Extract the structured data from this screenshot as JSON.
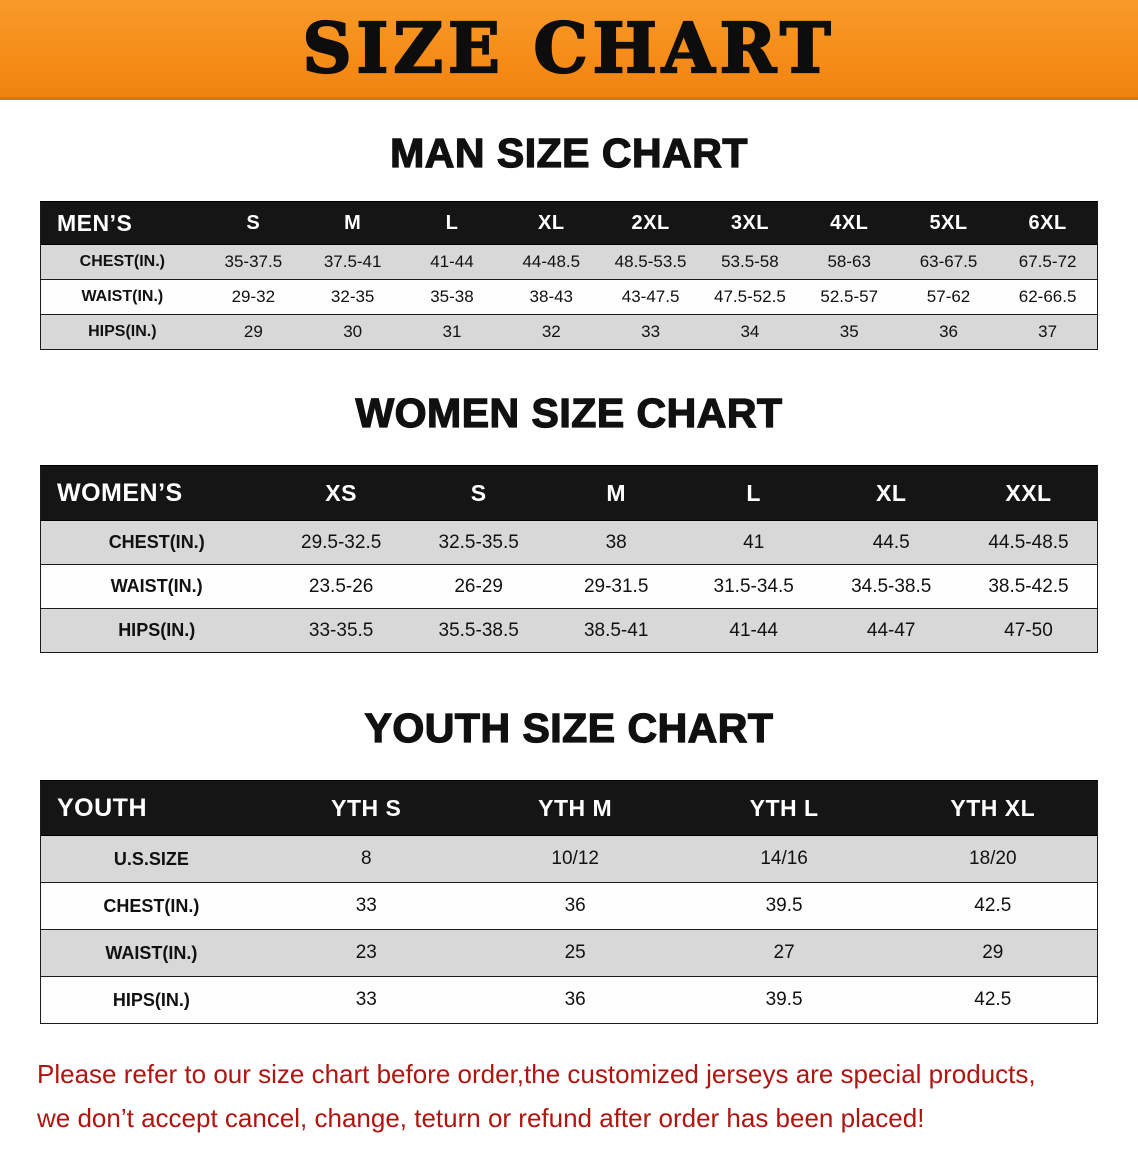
{
  "banner": {
    "title": "SIZE CHART"
  },
  "sections": [
    {
      "heading": "MAN SIZE CHART",
      "table": {
        "header": [
          "MEN’S",
          "S",
          "M",
          "L",
          "XL",
          "2XL",
          "3XL",
          "4XL",
          "5XL",
          "6XL"
        ],
        "rows": [
          [
            "CHEST(IN.)",
            "35-37.5",
            "37.5-41",
            "41-44",
            "44-48.5",
            "48.5-53.5",
            "53.5-58",
            "58-63",
            "63-67.5",
            "67.5-72"
          ],
          [
            "WAIST(IN.)",
            "29-32",
            "32-35",
            "35-38",
            "38-43",
            "43-47.5",
            "47.5-52.5",
            "52.5-57",
            "57-62",
            "62-66.5"
          ],
          [
            "HIPS(IN.)",
            "29",
            "30",
            "31",
            "32",
            "33",
            "34",
            "35",
            "36",
            "37"
          ]
        ]
      }
    },
    {
      "heading": "WOMEN SIZE CHART",
      "table": {
        "header": [
          "WOMEN’S",
          "XS",
          "S",
          "M",
          "L",
          "XL",
          "XXL"
        ],
        "rows": [
          [
            "CHEST(IN.)",
            "29.5-32.5",
            "32.5-35.5",
            "38",
            "41",
            "44.5",
            "44.5-48.5"
          ],
          [
            "WAIST(IN.)",
            "23.5-26",
            "26-29",
            "29-31.5",
            "31.5-34.5",
            "34.5-38.5",
            "38.5-42.5"
          ],
          [
            "HIPS(IN.)",
            "33-35.5",
            "35.5-38.5",
            "38.5-41",
            "41-44",
            "44-47",
            "47-50"
          ]
        ]
      }
    },
    {
      "heading": "YOUTH SIZE CHART",
      "table": {
        "header": [
          "YOUTH",
          "YTH S",
          "YTH M",
          "YTH L",
          "YTH XL"
        ],
        "rows": [
          [
            "U.S.SIZE",
            "8",
            "10/12",
            "14/16",
            "18/20"
          ],
          [
            "CHEST(IN.)",
            "33",
            "36",
            "39.5",
            "42.5"
          ],
          [
            "WAIST(IN.)",
            "23",
            "25",
            "27",
            "29"
          ],
          [
            "HIPS(IN.)",
            "33",
            "36",
            "39.5",
            "42.5"
          ]
        ]
      }
    }
  ],
  "footnote": {
    "line1": "Please refer to our size chart before order,the customized jerseys are special products,",
    "line2": "we don’t accept cancel, change, teturn or refund after order has been placed!"
  },
  "colors": {
    "banner_orange": "#f7941e",
    "table_header_black": "#151515",
    "stripe_gray": "#d8d8d8",
    "note_red": "#b01510"
  }
}
